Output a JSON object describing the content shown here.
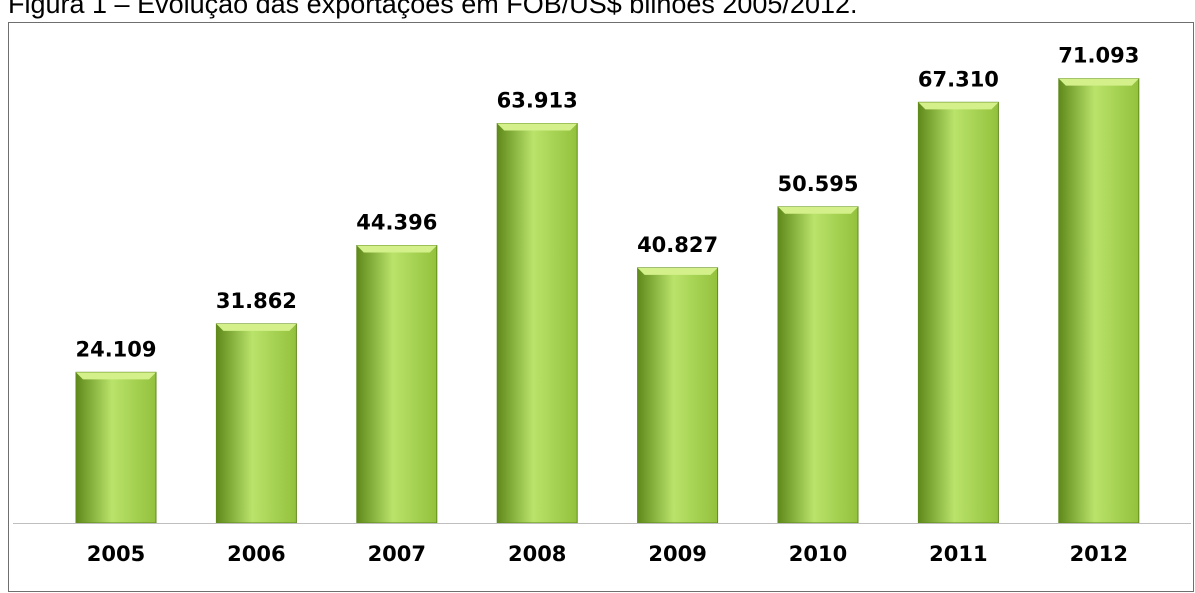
{
  "title": "Figura 1 – Evolução das exportações em FOB/US$ bilhões 2005/2012.",
  "colors": {
    "bar_light": "#b9e36a",
    "bar_mid": "#93c13c",
    "bar_dark": "#5f8a1b",
    "bar_top": "#d3f08a",
    "axis": "#bfbfbf"
  },
  "chart_data": {
    "type": "bar",
    "title": "",
    "xlabel": "",
    "ylabel": "",
    "categories": [
      "2005",
      "2006",
      "2007",
      "2008",
      "2009",
      "2010",
      "2011",
      "2012"
    ],
    "values": [
      24.109,
      31.862,
      44.396,
      63.913,
      40.827,
      50.595,
      67.31,
      71.093
    ],
    "value_labels": [
      "24.109",
      "31.862",
      "44.396",
      "63.913",
      "40.827",
      "50.595",
      "67.310",
      "71.093"
    ],
    "ylim": [
      0,
      80
    ],
    "grid": false,
    "legend": "none"
  }
}
